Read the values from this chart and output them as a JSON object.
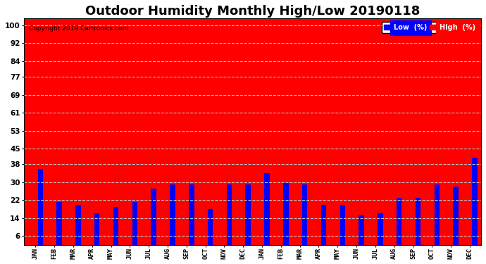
{
  "title": "Outdoor Humidity Monthly High/Low 20190118",
  "copyright": "Copyright 2019 Cartronics.com",
  "months": [
    "JAN",
    "FEB",
    "MAR",
    "APR",
    "MAY",
    "JUN",
    "JUL",
    "AUG",
    "SEP",
    "OCT",
    "NOV",
    "DEC",
    "JAN",
    "FEB",
    "MAR",
    "APR",
    "MAY",
    "JUN",
    "JUL",
    "AUG",
    "SEP",
    "OCT",
    "NOV",
    "DEC"
  ],
  "high_values": [
    100,
    100,
    100,
    100,
    100,
    100,
    100,
    100,
    100,
    100,
    100,
    100,
    100,
    100,
    100,
    100,
    100,
    100,
    100,
    100,
    100,
    100,
    100,
    100
  ],
  "low_values": [
    36,
    21,
    20,
    16,
    19,
    21,
    27,
    29,
    29,
    18,
    29,
    29,
    34,
    30,
    29,
    20,
    20,
    15,
    16,
    23,
    23,
    29,
    28,
    41
  ],
  "high_color": "#FF0000",
  "low_color": "#0000FF",
  "plot_bg_color": "#FF0000",
  "yticks": [
    6,
    14,
    22,
    30,
    38,
    45,
    53,
    61,
    69,
    77,
    84,
    92,
    100
  ],
  "ylim": [
    2,
    103
  ],
  "grid_color": "#C0C0C0",
  "title_fontsize": 13,
  "legend_labels": [
    "Low  (%)",
    "High  (%)"
  ]
}
